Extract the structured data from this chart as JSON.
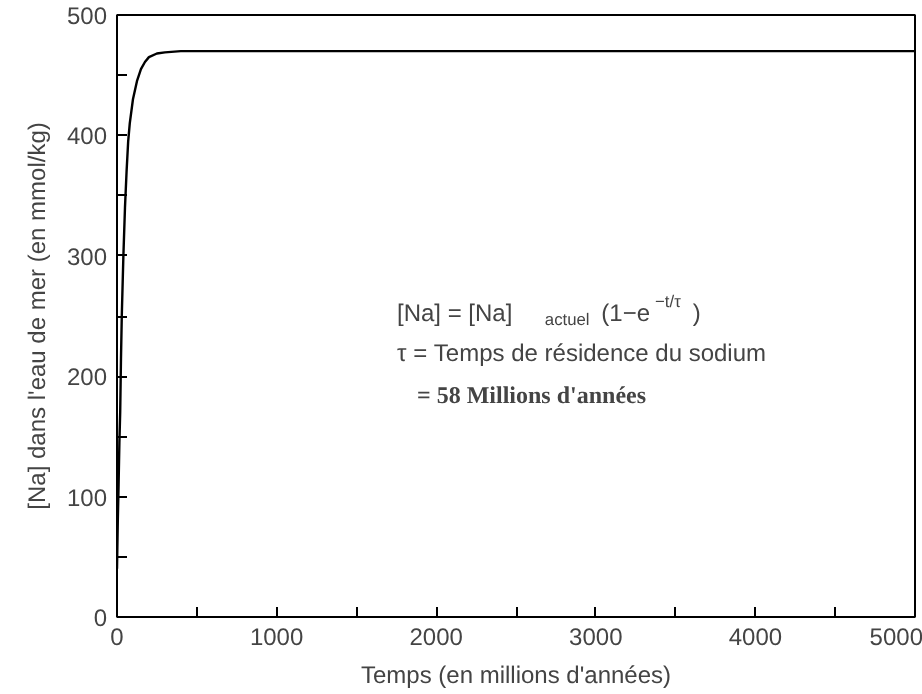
{
  "chart_data": {
    "type": "line",
    "xlabel": "Temps (en millions d'années)",
    "ylabel": "[Na] dans l'eau de mer (en mmol/kg)",
    "x": [
      0,
      5,
      10,
      15,
      20,
      25,
      30,
      40,
      50,
      60,
      70,
      80,
      100,
      125,
      150,
      175,
      200,
      250,
      300,
      400,
      1000,
      2000,
      3000,
      4000,
      5000
    ],
    "series": [
      {
        "color": "#000000",
        "values": [
          40,
          80,
          110,
          145,
          170,
          215,
          250,
          300,
          340,
          370,
          395,
          410,
          430,
          445,
          455,
          461,
          465,
          468,
          469,
          470,
          470,
          470,
          470,
          470,
          470
        ]
      }
    ],
    "xlim": [
      0,
      5000
    ],
    "ylim": [
      0,
      500
    ],
    "xticks": [
      0,
      {
        "value": 500,
        "label": null
      },
      1000,
      {
        "value": 1500,
        "label": null
      },
      2000,
      {
        "value": 2500,
        "label": null
      },
      3000,
      {
        "value": 3500,
        "label": null
      },
      4000,
      {
        "value": 4500,
        "label": null
      },
      5000
    ],
    "yticks": [
      0,
      {
        "value": 50,
        "label": null
      },
      100,
      {
        "value": 150,
        "label": null
      },
      200,
      {
        "value": 250,
        "label": null
      },
      300,
      {
        "value": 350,
        "label": null
      },
      400,
      {
        "value": 450,
        "label": null
      },
      500
    ],
    "grid": false,
    "marker": "none",
    "line_style": "solid",
    "annotations": [
      "[Na] = [Na]$_{actuel}$(1−e$^{−t/τ}$)",
      "τ = Temps de résidence du sodium",
      "= 58 Millions d'années"
    ]
  }
}
